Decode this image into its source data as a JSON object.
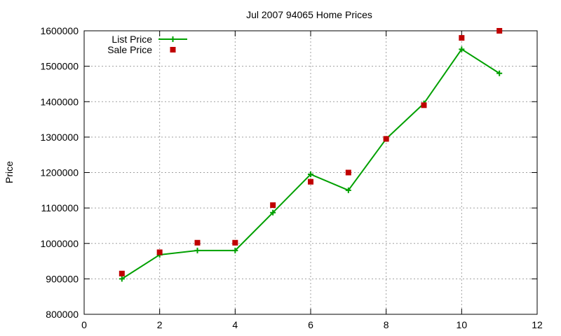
{
  "chart_data": {
    "type": "line",
    "title": "Jul 2007 94065 Home Prices",
    "xlabel": "",
    "ylabel": "Price",
    "xlim": [
      0,
      12
    ],
    "ylim": [
      800000,
      1600000
    ],
    "xticks": [
      0,
      2,
      4,
      6,
      8,
      10,
      12
    ],
    "yticks": [
      800000,
      900000,
      1000000,
      1100000,
      1200000,
      1300000,
      1400000,
      1500000,
      1600000
    ],
    "grid": true,
    "legend_position": "top-left",
    "series": [
      {
        "name": "List Price",
        "style": "line-with-plus-markers",
        "color": "#00a000",
        "x": [
          1,
          2,
          3,
          4,
          5,
          6,
          7,
          8,
          9,
          10,
          11
        ],
        "y": [
          900000,
          968000,
          980000,
          980000,
          1087000,
          1195000,
          1150000,
          1295000,
          1395000,
          1548000,
          1480000
        ]
      },
      {
        "name": "Sale Price",
        "style": "square-points",
        "color": "#c00000",
        "x": [
          1,
          2,
          3,
          4,
          5,
          6,
          7,
          8,
          9,
          10,
          11
        ],
        "y": [
          915000,
          975000,
          1002000,
          1002000,
          1108000,
          1174000,
          1200000,
          1295000,
          1390000,
          1580000,
          1600000
        ]
      }
    ]
  }
}
